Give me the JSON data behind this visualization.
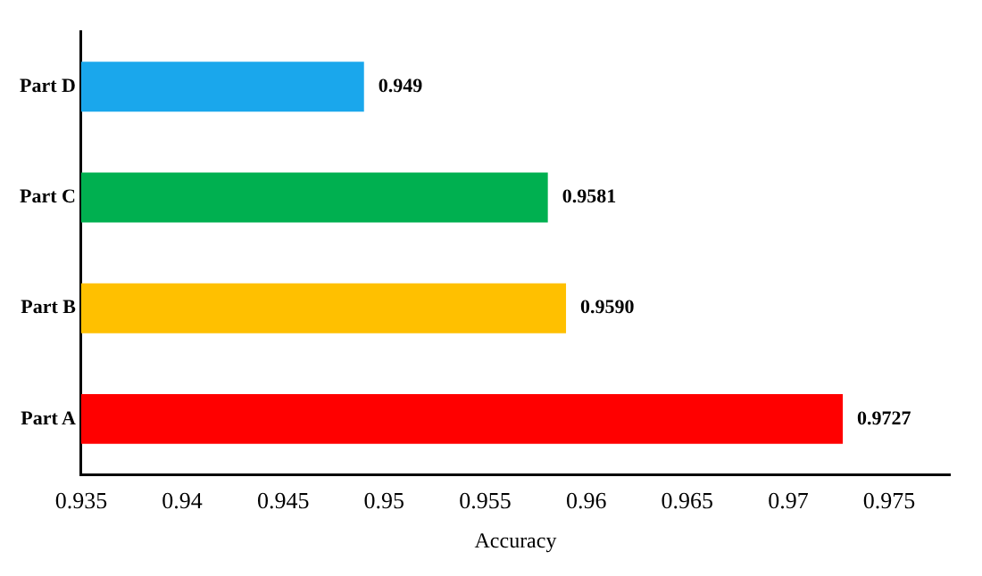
{
  "chart_data": {
    "type": "bar",
    "orientation": "horizontal",
    "xlabel": "Accuracy",
    "categories": [
      "Part D",
      "Part C",
      "Part B",
      "Part A"
    ],
    "values": [
      0.949,
      0.9581,
      0.959,
      0.9727
    ],
    "colors": [
      "#1aa7ec",
      "#00b050",
      "#ffc000",
      "#ff0000"
    ],
    "value_labels": [
      "0.949",
      "0.9581",
      "0.9590",
      "0.9727"
    ],
    "xlim": [
      0.935,
      0.978
    ],
    "xticks": [
      0.935,
      0.94,
      0.945,
      0.95,
      0.955,
      0.96,
      0.965,
      0.97,
      0.975
    ],
    "grid": false,
    "legend": false
  }
}
